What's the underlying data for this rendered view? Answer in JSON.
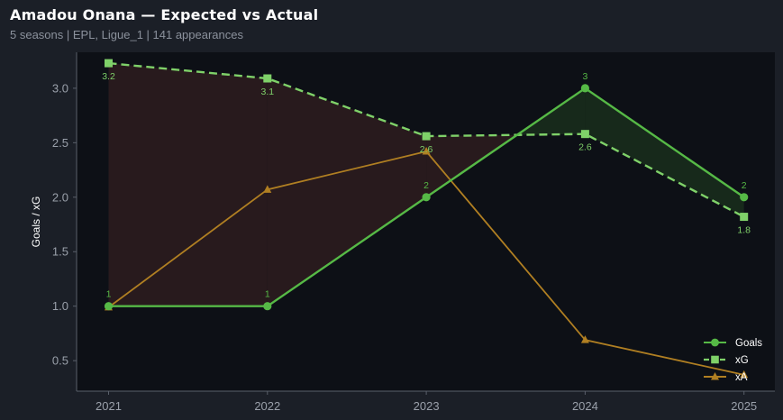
{
  "header": {
    "title": "Amadou Onana — Expected vs Actual",
    "subtitle": "5 seasons | EPL, Ligue_1 | 141 appearances"
  },
  "chart_data": {
    "type": "line",
    "categories": [
      "2021",
      "2022",
      "2023",
      "2024",
      "2025"
    ],
    "ylabel": "Goals / xG",
    "ylim": [
      0.22,
      3.33
    ],
    "yticks": [
      "0.5",
      "1.0",
      "1.5",
      "2.0",
      "2.5",
      "3.0"
    ],
    "grid": false,
    "legend_position": "bottom-right",
    "series": [
      {
        "name": "Goals",
        "values": [
          1,
          1,
          2,
          3,
          2
        ],
        "labels": [
          "1",
          "1",
          "2",
          "3",
          "2"
        ],
        "color": "#56b946",
        "marker": "circle",
        "style": "solid"
      },
      {
        "name": "xG",
        "values": [
          3.23,
          3.09,
          2.56,
          2.58,
          1.82
        ],
        "labels": [
          "3.2",
          "3.1",
          "2.6",
          "2.6",
          "1.8"
        ],
        "color": "#7fd169",
        "marker": "square",
        "style": "dashed"
      },
      {
        "name": "xA",
        "values": [
          0.99,
          2.07,
          2.42,
          0.69,
          0.37
        ],
        "color": "#b07f22",
        "marker": "triangle",
        "style": "solid"
      }
    ],
    "fill_colors": {
      "underperform": "#2e1c1f",
      "overperform": "#1a2e1c"
    },
    "plot_background": "#0d1016"
  }
}
